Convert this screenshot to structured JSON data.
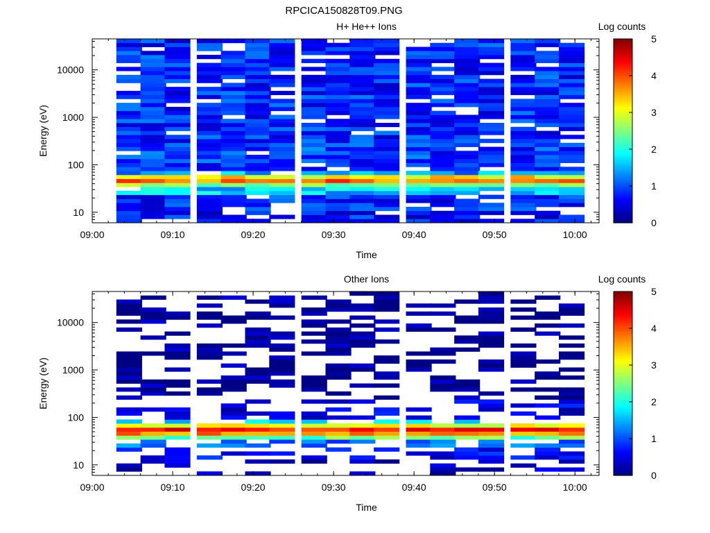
{
  "page_title": "RPCICA150828T09.PNG",
  "chart_data": [
    {
      "type": "heatmap",
      "title": "H+ He++ Ions",
      "xlabel": "Time",
      "ylabel": "Energy (eV)",
      "y_scale": "log",
      "ylim": [
        6,
        45000
      ],
      "xlim": [
        "09:00",
        "10:03"
      ],
      "x_ticks": [
        "09:00",
        "09:10",
        "09:20",
        "09:30",
        "09:40",
        "09:50",
        "10:00"
      ],
      "y_ticks": [
        "10",
        "100",
        "1000",
        "10000"
      ],
      "colorbar": {
        "label": "Log counts",
        "ticks": [
          "0",
          "1",
          "2",
          "3",
          "4",
          "5"
        ],
        "range": [
          0,
          5
        ],
        "colormap": "jet"
      },
      "time_bins_start": [
        "09:03",
        "09:06",
        "09:09",
        "09:13",
        "09:16",
        "09:19",
        "09:22",
        "09:26",
        "09:29",
        "09:32",
        "09:35",
        "09:39",
        "09:42",
        "09:45",
        "09:48",
        "09:52",
        "09:55",
        "09:58"
      ],
      "time_bin_minutes": 3.2,
      "energy_profile": [
        {
          "e_low": 6,
          "e_high": 11,
          "log_counts": 0.7
        },
        {
          "e_low": 11,
          "e_high": 22,
          "log_counts": 0.8
        },
        {
          "e_low": 22,
          "e_high": 32,
          "log_counts": 1.6
        },
        {
          "e_low": 32,
          "e_high": 38,
          "log_counts": 2.6
        },
        {
          "e_low": 38,
          "e_high": 46,
          "log_counts": 3.8
        },
        {
          "e_low": 46,
          "e_high": 60,
          "log_counts": 3.2
        },
        {
          "e_low": 60,
          "e_high": 75,
          "log_counts": 1.4
        },
        {
          "e_low": 75,
          "e_high": 300,
          "log_counts": 0.9
        },
        {
          "e_low": 300,
          "e_high": 45000,
          "log_counts": 0.8
        }
      ],
      "background_spread": 0.45,
      "empty_fraction": 0.12
    },
    {
      "type": "heatmap",
      "title": "Other Ions",
      "xlabel": "Time",
      "ylabel": "Energy (eV)",
      "y_scale": "log",
      "ylim": [
        6,
        45000
      ],
      "xlim": [
        "09:00",
        "10:03"
      ],
      "x_ticks": [
        "09:00",
        "09:10",
        "09:20",
        "09:30",
        "09:40",
        "09:50",
        "10:00"
      ],
      "y_ticks": [
        "10",
        "100",
        "1000",
        "10000"
      ],
      "colorbar": {
        "label": "Log counts",
        "ticks": [
          "0",
          "1",
          "2",
          "3",
          "4",
          "5"
        ],
        "range": [
          0,
          5
        ],
        "colormap": "jet"
      },
      "time_bins_start": [
        "09:03",
        "09:06",
        "09:09",
        "09:13",
        "09:16",
        "09:19",
        "09:22",
        "09:26",
        "09:29",
        "09:32",
        "09:35",
        "09:39",
        "09:42",
        "09:45",
        "09:48",
        "09:52",
        "09:55",
        "09:58"
      ],
      "time_bin_minutes": 3.2,
      "energy_profile": [
        {
          "e_low": 6,
          "e_high": 14,
          "log_counts": 0.3
        },
        {
          "e_low": 14,
          "e_high": 25,
          "log_counts": 0.6
        },
        {
          "e_low": 25,
          "e_high": 32,
          "log_counts": 1.2
        },
        {
          "e_low": 32,
          "e_high": 38,
          "log_counts": 2.4
        },
        {
          "e_low": 38,
          "e_high": 48,
          "log_counts": 3.7
        },
        {
          "e_low": 48,
          "e_high": 58,
          "log_counts": 4.3
        },
        {
          "e_low": 58,
          "e_high": 72,
          "log_counts": 3.0
        },
        {
          "e_low": 72,
          "e_high": 95,
          "log_counts": 1.6
        },
        {
          "e_low": 95,
          "e_high": 250,
          "log_counts": 0.5
        },
        {
          "e_low": 250,
          "e_high": 45000,
          "log_counts": 0.05
        }
      ],
      "background_spread": 0.35,
      "empty_fraction": 0.55
    }
  ]
}
